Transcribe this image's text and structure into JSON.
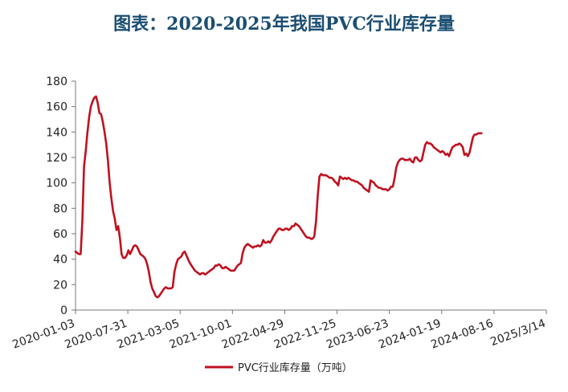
{
  "chart_data": {
    "type": "line",
    "title": "图表：2020-2025年我国PVC行业库存量",
    "xlabel": "",
    "ylabel": "",
    "ylim": [
      0,
      180
    ],
    "yticks": [
      0,
      20,
      40,
      60,
      80,
      100,
      120,
      140,
      160,
      180
    ],
    "xtick_labels": [
      "2020-01-03",
      "2020-07-31",
      "2021-03-05",
      "2021-10-01",
      "2022-04-29",
      "2022-11-25",
      "2023-06-23",
      "2024-01-19",
      "2024-08-16",
      "2025/3/14"
    ],
    "legend_position": "bottom-center",
    "colors": {
      "line": "#c0111f"
    },
    "series": [
      {
        "name": "PVC行业库存量（万吨）",
        "x_index_max": 276,
        "points": [
          [
            0,
            46
          ],
          [
            1,
            45
          ],
          [
            2,
            44
          ],
          [
            3,
            44
          ],
          [
            4,
            70
          ],
          [
            5,
            113
          ],
          [
            6,
            125
          ],
          [
            7,
            140
          ],
          [
            8,
            152
          ],
          [
            9,
            160
          ],
          [
            10,
            164
          ],
          [
            11,
            167
          ],
          [
            12,
            168
          ],
          [
            13,
            163
          ],
          [
            14,
            155
          ],
          [
            15,
            154
          ],
          [
            16,
            148
          ],
          [
            17,
            140
          ],
          [
            18,
            131
          ],
          [
            19,
            118
          ],
          [
            20,
            100
          ],
          [
            21,
            88
          ],
          [
            22,
            78
          ],
          [
            23,
            72
          ],
          [
            24,
            63
          ],
          [
            25,
            66
          ],
          [
            26,
            57
          ],
          [
            27,
            44
          ],
          [
            28,
            41
          ],
          [
            29,
            41
          ],
          [
            30,
            43
          ],
          [
            31,
            47
          ],
          [
            32,
            44
          ],
          [
            33,
            47
          ],
          [
            34,
            50
          ],
          [
            35,
            51
          ],
          [
            36,
            50
          ],
          [
            37,
            47
          ],
          [
            38,
            44
          ],
          [
            39,
            43
          ],
          [
            40,
            42
          ],
          [
            41,
            40
          ],
          [
            42,
            36
          ],
          [
            43,
            30
          ],
          [
            44,
            22
          ],
          [
            45,
            17
          ],
          [
            46,
            14
          ],
          [
            47,
            11
          ],
          [
            48,
            10
          ],
          [
            49,
            11
          ],
          [
            50,
            13
          ],
          [
            51,
            15
          ],
          [
            52,
            17
          ],
          [
            53,
            18
          ],
          [
            54,
            17
          ],
          [
            55,
            17
          ],
          [
            56,
            17
          ],
          [
            57,
            18
          ],
          [
            58,
            30
          ],
          [
            59,
            36
          ],
          [
            60,
            40
          ],
          [
            61,
            41
          ],
          [
            62,
            42
          ],
          [
            63,
            45
          ],
          [
            64,
            46
          ],
          [
            65,
            43
          ],
          [
            66,
            40
          ],
          [
            67,
            37
          ],
          [
            68,
            35
          ],
          [
            69,
            33
          ],
          [
            70,
            31
          ],
          [
            71,
            30
          ],
          [
            72,
            29
          ],
          [
            73,
            28
          ],
          [
            74,
            29
          ],
          [
            75,
            29
          ],
          [
            76,
            28
          ],
          [
            77,
            29
          ],
          [
            78,
            30
          ],
          [
            79,
            31
          ],
          [
            80,
            32
          ],
          [
            81,
            33
          ],
          [
            82,
            35
          ],
          [
            83,
            35
          ],
          [
            84,
            36
          ],
          [
            85,
            35
          ],
          [
            86,
            33
          ],
          [
            87,
            33
          ],
          [
            88,
            34
          ],
          [
            89,
            33
          ],
          [
            90,
            32
          ],
          [
            91,
            31
          ],
          [
            92,
            31
          ],
          [
            93,
            31
          ],
          [
            94,
            33
          ],
          [
            95,
            35
          ],
          [
            96,
            36
          ],
          [
            97,
            37
          ],
          [
            98,
            45
          ],
          [
            99,
            49
          ],
          [
            100,
            51
          ],
          [
            101,
            52
          ],
          [
            102,
            51
          ],
          [
            103,
            50
          ],
          [
            104,
            49
          ],
          [
            105,
            50
          ],
          [
            106,
            50
          ],
          [
            107,
            51
          ],
          [
            108,
            50
          ],
          [
            109,
            51
          ],
          [
            110,
            55
          ],
          [
            111,
            53
          ],
          [
            112,
            53
          ],
          [
            113,
            54
          ],
          [
            114,
            53
          ],
          [
            115,
            55
          ],
          [
            116,
            58
          ],
          [
            117,
            60
          ],
          [
            118,
            62
          ],
          [
            119,
            64
          ],
          [
            120,
            64
          ],
          [
            121,
            63
          ],
          [
            122,
            63
          ],
          [
            123,
            64
          ],
          [
            124,
            64
          ],
          [
            125,
            63
          ],
          [
            126,
            64
          ],
          [
            127,
            66
          ],
          [
            128,
            66
          ],
          [
            129,
            68
          ],
          [
            130,
            67
          ],
          [
            131,
            66
          ],
          [
            132,
            64
          ],
          [
            133,
            62
          ],
          [
            134,
            60
          ],
          [
            135,
            58
          ],
          [
            136,
            57
          ],
          [
            137,
            57
          ],
          [
            138,
            56
          ],
          [
            139,
            56
          ],
          [
            140,
            58
          ],
          [
            141,
            70
          ],
          [
            142,
            90
          ],
          [
            143,
            105
          ],
          [
            144,
            107
          ],
          [
            145,
            106
          ],
          [
            146,
            106
          ],
          [
            147,
            106
          ],
          [
            148,
            105
          ],
          [
            149,
            104
          ],
          [
            150,
            104
          ],
          [
            151,
            103
          ],
          [
            152,
            101
          ],
          [
            153,
            100
          ],
          [
            154,
            98
          ],
          [
            155,
            105
          ],
          [
            156,
            104
          ],
          [
            157,
            103
          ],
          [
            158,
            104
          ],
          [
            159,
            103
          ],
          [
            160,
            104
          ],
          [
            161,
            103
          ],
          [
            162,
            102
          ],
          [
            163,
            102
          ],
          [
            164,
            101
          ],
          [
            165,
            101
          ],
          [
            166,
            100
          ],
          [
            167,
            99
          ],
          [
            168,
            98
          ],
          [
            169,
            96
          ],
          [
            170,
            95
          ],
          [
            171,
            94
          ],
          [
            172,
            93
          ],
          [
            173,
            102
          ],
          [
            174,
            101
          ],
          [
            175,
            100
          ],
          [
            176,
            98
          ],
          [
            177,
            97
          ],
          [
            178,
            96
          ],
          [
            179,
            96
          ],
          [
            180,
            95
          ],
          [
            181,
            95
          ],
          [
            182,
            95
          ],
          [
            183,
            94
          ],
          [
            184,
            95
          ],
          [
            185,
            97
          ],
          [
            186,
            97
          ],
          [
            187,
            103
          ],
          [
            188,
            112
          ],
          [
            189,
            116
          ],
          [
            190,
            118
          ],
          [
            191,
            119
          ],
          [
            192,
            119
          ],
          [
            193,
            118
          ],
          [
            194,
            118
          ],
          [
            195,
            118
          ],
          [
            196,
            119
          ],
          [
            197,
            117
          ],
          [
            198,
            116
          ],
          [
            199,
            120
          ],
          [
            200,
            120
          ],
          [
            201,
            118
          ],
          [
            202,
            117
          ],
          [
            203,
            118
          ],
          [
            204,
            124
          ],
          [
            205,
            130
          ],
          [
            206,
            132
          ],
          [
            207,
            131
          ],
          [
            208,
            131
          ],
          [
            209,
            130
          ],
          [
            210,
            128
          ],
          [
            211,
            127
          ],
          [
            212,
            126
          ],
          [
            213,
            125
          ],
          [
            214,
            124
          ],
          [
            215,
            125
          ],
          [
            216,
            124
          ],
          [
            217,
            122
          ],
          [
            218,
            123
          ],
          [
            219,
            121
          ],
          [
            220,
            125
          ],
          [
            221,
            128
          ],
          [
            222,
            129
          ],
          [
            223,
            130
          ],
          [
            224,
            130
          ],
          [
            225,
            131
          ],
          [
            226,
            130
          ],
          [
            227,
            128
          ],
          [
            228,
            122
          ],
          [
            229,
            123
          ],
          [
            230,
            121
          ],
          [
            231,
            124
          ],
          [
            232,
            130
          ],
          [
            233,
            136
          ],
          [
            234,
            138
          ],
          [
            235,
            138
          ],
          [
            236,
            139
          ],
          [
            237,
            139
          ],
          [
            238,
            139
          ]
        ]
      }
    ]
  }
}
